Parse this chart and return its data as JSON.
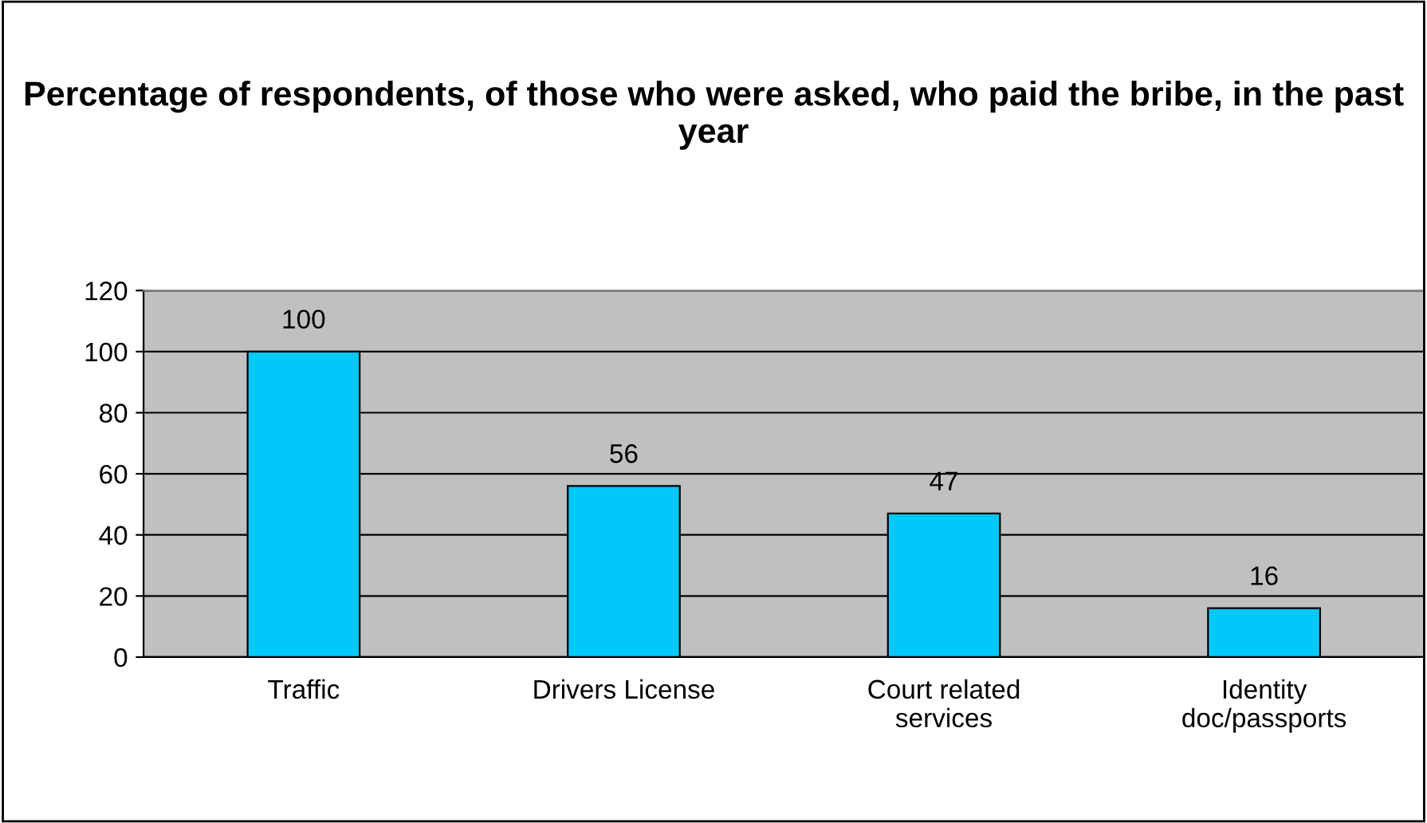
{
  "chart_data": {
    "type": "bar",
    "title": "Percentage of respondents, of those who were asked, who paid the bribe, in the past year",
    "categories": [
      "Traffic",
      "Drivers License",
      "Court related services",
      "Identity doc/passports"
    ],
    "values": [
      100,
      56,
      47,
      16
    ],
    "color": "#00c8f8",
    "ylim": [
      0,
      120
    ],
    "yticks": [
      0,
      20,
      40,
      60,
      80,
      100,
      120
    ],
    "grid": "y",
    "data_labels": true
  }
}
